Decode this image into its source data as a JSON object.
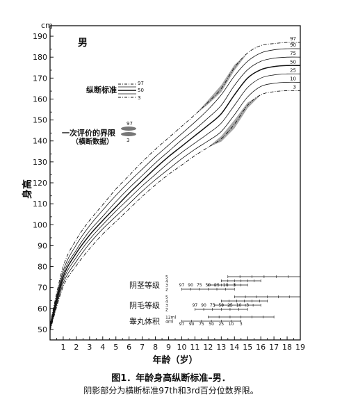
{
  "chart_data": {
    "type": "line",
    "title": "男",
    "ylabel_unit": "cm",
    "ylabel": "身高",
    "xlabel": "年龄（岁）",
    "xlim": [
      0,
      19
    ],
    "ylim": [
      45,
      195
    ],
    "x_ticks": [
      "1",
      "2",
      "3",
      "4",
      "5",
      "6",
      "7",
      "8",
      "9",
      "10",
      "11",
      "12",
      "13",
      "14",
      "15",
      "16",
      "17",
      "18",
      "19"
    ],
    "y_ticks": [
      "50",
      "60",
      "70",
      "80",
      "90",
      "100",
      "110",
      "120",
      "130",
      "140",
      "150",
      "160",
      "170",
      "180",
      "190"
    ],
    "percentile_labels": [
      "97",
      "90",
      "75",
      "50",
      "25",
      "10",
      "3"
    ],
    "legend": {
      "longitudinal_label": "纵断标准",
      "longitudinal_items": [
        "97",
        "50",
        "3"
      ],
      "cross_label_line1": "一次评价的界限",
      "cross_label_line2": "（横断数据）",
      "cross_items": [
        "97",
        "3"
      ]
    },
    "x": [
      0,
      1,
      2,
      3,
      4,
      5,
      6,
      7,
      8,
      9,
      10,
      11,
      12,
      13,
      14,
      15,
      16,
      17,
      18,
      19
    ],
    "series": [
      {
        "name": "97",
        "values": [
          52.5,
          80,
          93,
          102,
          109.5,
          117,
          123.5,
          130,
          136,
          141.5,
          147,
          152.5,
          158.5,
          165,
          175,
          182,
          185.5,
          186.5,
          187,
          187
        ]
      },
      {
        "name": "90",
        "values": [
          52,
          78,
          90.5,
          99.5,
          107,
          114,
          120.5,
          126.5,
          132.5,
          138,
          143.5,
          149,
          155,
          162,
          171,
          178,
          182,
          183.5,
          184,
          184
        ]
      },
      {
        "name": "75",
        "values": [
          51.5,
          76.5,
          88,
          97,
          104,
          111,
          117.5,
          123.5,
          129.5,
          135,
          140.5,
          145.5,
          151,
          157,
          166.5,
          174,
          178,
          179.5,
          180,
          180
        ]
      },
      {
        "name": "50",
        "values": [
          51,
          75,
          86.5,
          95,
          102,
          108.5,
          115,
          121,
          127,
          132.5,
          137.5,
          142.5,
          147.5,
          153,
          162,
          170,
          174,
          175.5,
          176,
          176
        ]
      },
      {
        "name": "25",
        "values": [
          50.5,
          73.5,
          84.5,
          93,
          100,
          106.5,
          112.5,
          118.5,
          124,
          129.5,
          134.5,
          139,
          143.5,
          148.5,
          157,
          165.5,
          170,
          171.5,
          172,
          172
        ]
      },
      {
        "name": "10",
        "values": [
          50,
          72,
          82.5,
          91,
          98,
          104,
          110,
          116,
          121.5,
          126.5,
          131.5,
          136,
          140,
          144.5,
          152.5,
          161,
          166,
          167.5,
          168,
          168
        ]
      },
      {
        "name": "3",
        "values": [
          49.5,
          70.5,
          80.5,
          88.5,
          95.5,
          101.5,
          107.5,
          113.5,
          119,
          124,
          128.5,
          133,
          137,
          141,
          148,
          157,
          162,
          163.5,
          164,
          164
        ]
      }
    ],
    "maturity_scales": [
      {
        "label": "阴茎等级",
        "stage_labels": [
          "5",
          "4",
          "3",
          "2"
        ],
        "percentiles": [
          "97",
          "90",
          "75",
          "50",
          "25",
          "10",
          "3"
        ],
        "bars": [
          [
            13.5,
            19
          ],
          [
            13,
            16
          ],
          [
            12,
            15
          ],
          [
            10,
            14
          ]
        ]
      },
      {
        "label": "阴毛等级",
        "stage_labels": [
          "5",
          "4",
          "3",
          "2"
        ],
        "percentiles": [
          "97",
          "90",
          "75",
          "50",
          "25",
          "10",
          "3"
        ],
        "bars": [
          [
            14,
            19
          ],
          [
            13,
            16.5
          ],
          [
            12.5,
            16
          ],
          [
            11,
            15
          ]
        ]
      },
      {
        "label": "睾丸体积",
        "stage_labels": [
          "12ml",
          "4ml"
        ],
        "percentiles": [
          "97",
          "90",
          "75",
          "50",
          "25",
          "10",
          "3"
        ],
        "bars": [
          [
            12,
            17
          ],
          [
            10,
            14.5
          ]
        ]
      }
    ]
  },
  "caption": {
    "title": "图1．年龄身高纵断标准–男．",
    "note": "阴影部分为横断标准97th和3rd百分位数界限。"
  }
}
